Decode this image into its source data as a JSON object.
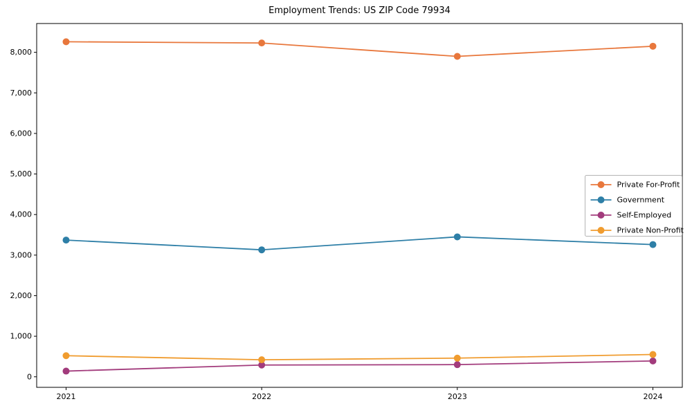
{
  "title": "Employment Trends: US ZIP Code 79934",
  "chart_data": {
    "type": "line",
    "x": [
      "2021",
      "2022",
      "2023",
      "2024"
    ],
    "series": [
      {
        "name": "Private For-Profit",
        "color": "#E8773C",
        "values": [
          8260,
          8230,
          7900,
          8150
        ]
      },
      {
        "name": "Government",
        "color": "#2E7FA7",
        "values": [
          3370,
          3130,
          3450,
          3260
        ]
      },
      {
        "name": "Self-Employed",
        "color": "#A23B7C",
        "values": [
          140,
          290,
          300,
          390
        ]
      },
      {
        "name": "Private Non-Profit",
        "color": "#F09C2F",
        "values": [
          520,
          420,
          460,
          550
        ]
      }
    ],
    "title": "Employment Trends: US ZIP Code 79934",
    "xlabel": "",
    "ylabel": "",
    "ylim": [
      -260,
      8710
    ],
    "yticks": [
      0,
      1000,
      2000,
      3000,
      4000,
      5000,
      6000,
      7000,
      8000
    ],
    "ytick_labels": [
      "0",
      "1,000",
      "2,000",
      "3,000",
      "4,000",
      "5,000",
      "6,000",
      "7,000",
      "8,000"
    ],
    "grid": false,
    "marker": "circle",
    "legend_position": "center right"
  },
  "style": {
    "axis_color": "#000000",
    "legend_border_color": "#b4b4b4",
    "legend_background": "#ffffff",
    "line_width": 1.8,
    "marker_radius": 5
  }
}
